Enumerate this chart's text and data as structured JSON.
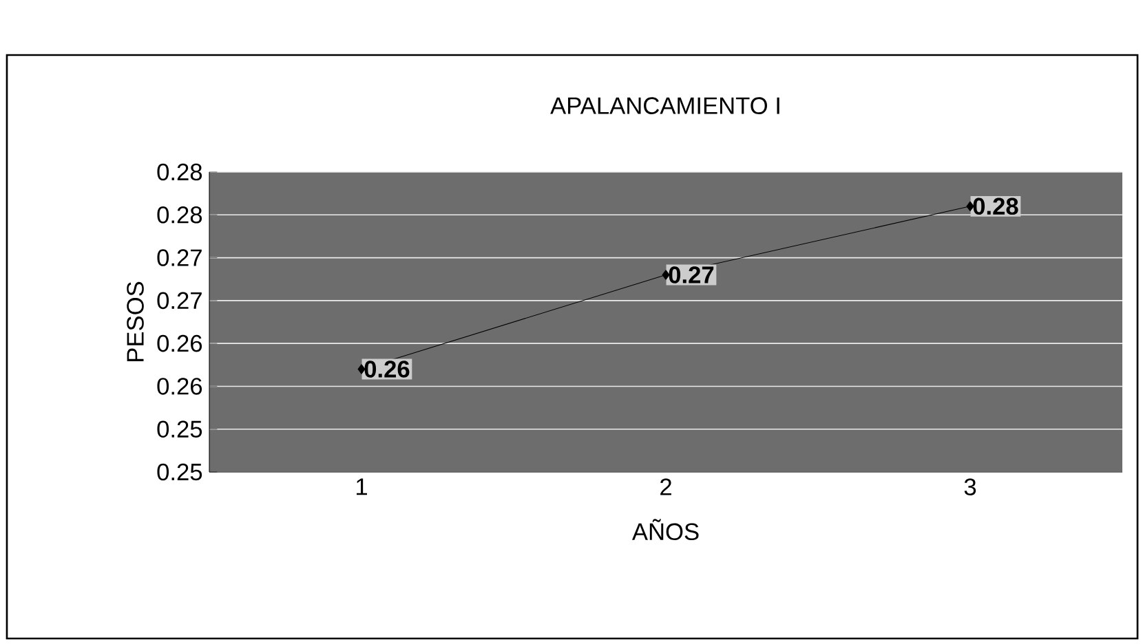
{
  "chart_data": {
    "type": "line",
    "title": "APALANCAMIENTO I",
    "xlabel": "AÑOS",
    "ylabel": "PESOS",
    "categories": [
      "1",
      "2",
      "3"
    ],
    "series": [
      {
        "color": "#000000",
        "values": [
          0.262,
          0.273,
          0.281
        ],
        "value_labels": [
          "0.26",
          "0.27",
          "0.28"
        ]
      }
    ],
    "ylim": [
      0.25,
      0.285
    ],
    "yticks": [
      {
        "value": 0.25,
        "label": "0.25"
      },
      {
        "value": 0.255,
        "label": "0.25"
      },
      {
        "value": 0.26,
        "label": "0.26"
      },
      {
        "value": 0.265,
        "label": "0.26"
      },
      {
        "value": 0.27,
        "label": "0.27"
      },
      {
        "value": 0.275,
        "label": "0.27"
      },
      {
        "value": 0.28,
        "label": "0.28"
      },
      {
        "value": 0.285,
        "label": "0.28"
      }
    ],
    "grid": "y",
    "marker": "diamond",
    "line_style": "solid"
  }
}
